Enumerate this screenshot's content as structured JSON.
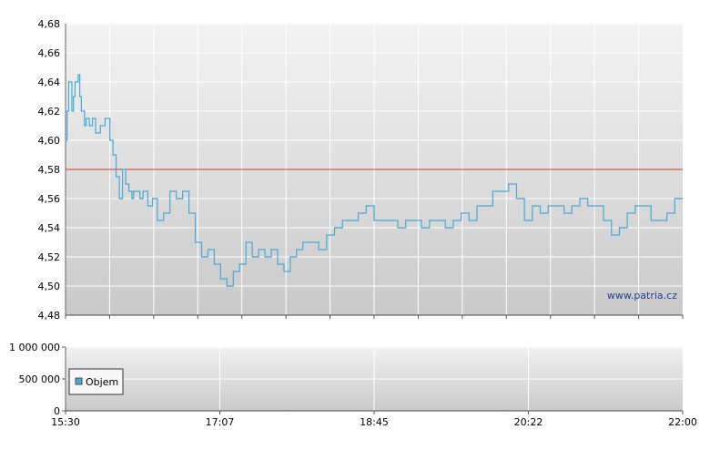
{
  "chart_data": [
    {
      "type": "line",
      "title": "",
      "xlabel": "",
      "ylabel": "",
      "ylim": [
        4.48,
        4.68
      ],
      "y_ticks": [
        "4,48",
        "4,50",
        "4,52",
        "4,54",
        "4,56",
        "4,58",
        "4,60",
        "4,62",
        "4,64",
        "4,66",
        "4,68"
      ],
      "y_tick_values": [
        4.48,
        4.5,
        4.52,
        4.54,
        4.56,
        4.58,
        4.6,
        4.62,
        4.64,
        4.66,
        4.68
      ],
      "xlim": [
        "15:30",
        "22:00"
      ],
      "grid": true,
      "reference_line": {
        "value": 4.58,
        "color": "#cc3333"
      },
      "watermark": "www.patria.cz",
      "line_color": "#4aa8d8",
      "series": [
        {
          "x": [
            "15:30",
            "15:31",
            "15:32",
            "15:34",
            "15:35",
            "15:36",
            "15:38",
            "15:39",
            "15:40",
            "15:42",
            "15:43",
            "15:45",
            "15:47",
            "15:49",
            "15:52",
            "15:55",
            "15:58",
            "16:00",
            "16:02",
            "16:04",
            "16:06",
            "16:08",
            "16:10",
            "16:12",
            "16:13",
            "16:15",
            "16:17",
            "16:19",
            "16:22",
            "16:25",
            "16:28",
            "16:32",
            "16:36",
            "16:40",
            "16:44",
            "16:48",
            "16:52",
            "16:56",
            "17:00",
            "17:04",
            "17:08",
            "17:12",
            "17:16",
            "17:20",
            "17:24",
            "17:28",
            "17:32",
            "17:36",
            "17:40",
            "17:44",
            "17:48",
            "17:52",
            "17:56",
            "18:00",
            "18:05",
            "18:10",
            "18:15",
            "18:20",
            "18:25",
            "18:30",
            "18:35",
            "18:40",
            "18:45",
            "18:50",
            "18:55",
            "19:00",
            "19:05",
            "19:10",
            "19:15",
            "19:20",
            "19:25",
            "19:30",
            "19:35",
            "19:40",
            "19:45",
            "19:50",
            "19:55",
            "20:00",
            "20:05",
            "20:10",
            "20:15",
            "20:20",
            "20:25",
            "20:30",
            "20:35",
            "20:40",
            "20:45",
            "20:50",
            "20:55",
            "21:00",
            "21:05",
            "21:10",
            "21:15",
            "21:20",
            "21:25",
            "21:30",
            "21:35",
            "21:40",
            "21:45",
            "21:50",
            "21:55",
            "22:00"
          ],
          "values": [
            4.6,
            4.62,
            4.64,
            4.62,
            4.63,
            4.64,
            4.645,
            4.63,
            4.62,
            4.61,
            4.615,
            4.61,
            4.615,
            4.605,
            4.61,
            4.615,
            4.6,
            4.59,
            4.575,
            4.56,
            4.58,
            4.57,
            4.565,
            4.56,
            4.565,
            4.565,
            4.56,
            4.565,
            4.555,
            4.56,
            4.545,
            4.55,
            4.565,
            4.56,
            4.565,
            4.55,
            4.53,
            4.52,
            4.525,
            4.515,
            4.505,
            4.5,
            4.51,
            4.515,
            4.53,
            4.52,
            4.525,
            4.52,
            4.525,
            4.515,
            4.51,
            4.52,
            4.525,
            4.53,
            4.53,
            4.525,
            4.535,
            4.54,
            4.545,
            4.545,
            4.55,
            4.555,
            4.545,
            4.545,
            4.545,
            4.54,
            4.545,
            4.545,
            4.54,
            4.545,
            4.545,
            4.54,
            4.545,
            4.55,
            4.545,
            4.555,
            4.555,
            4.565,
            4.565,
            4.57,
            4.56,
            4.545,
            4.555,
            4.55,
            4.555,
            4.555,
            4.55,
            4.555,
            4.56,
            4.555,
            4.555,
            4.545,
            4.535,
            4.54,
            4.55,
            4.555,
            4.555,
            4.545,
            4.545,
            4.55,
            4.56,
            4.56
          ]
        }
      ]
    },
    {
      "type": "bar",
      "title": "",
      "xlabel": "",
      "ylabel": "",
      "ylim": [
        0,
        1000000
      ],
      "y_ticks": [
        "0",
        "500 000",
        "1 000 000"
      ],
      "y_tick_values": [
        0,
        500000,
        1000000
      ],
      "x_ticks": [
        "15:30",
        "17:07",
        "18:45",
        "20:22",
        "22:00"
      ],
      "grid": true,
      "legend": {
        "placement": "bottom-left",
        "entries": [
          "Objem"
        ]
      },
      "bar_color": "#4aa8d8",
      "series": [
        {
          "name": "Objem",
          "x": [
            "15:45",
            "16:30",
            "17:20",
            "17:50",
            "18:10",
            "18:40",
            "19:10",
            "19:40",
            "20:10",
            "20:40",
            "21:10",
            "21:40"
          ],
          "values": [
            2000,
            1500,
            3000,
            1000,
            2500,
            1200,
            1800,
            2200,
            1000,
            3000,
            1400,
            2000
          ]
        }
      ]
    }
  ]
}
